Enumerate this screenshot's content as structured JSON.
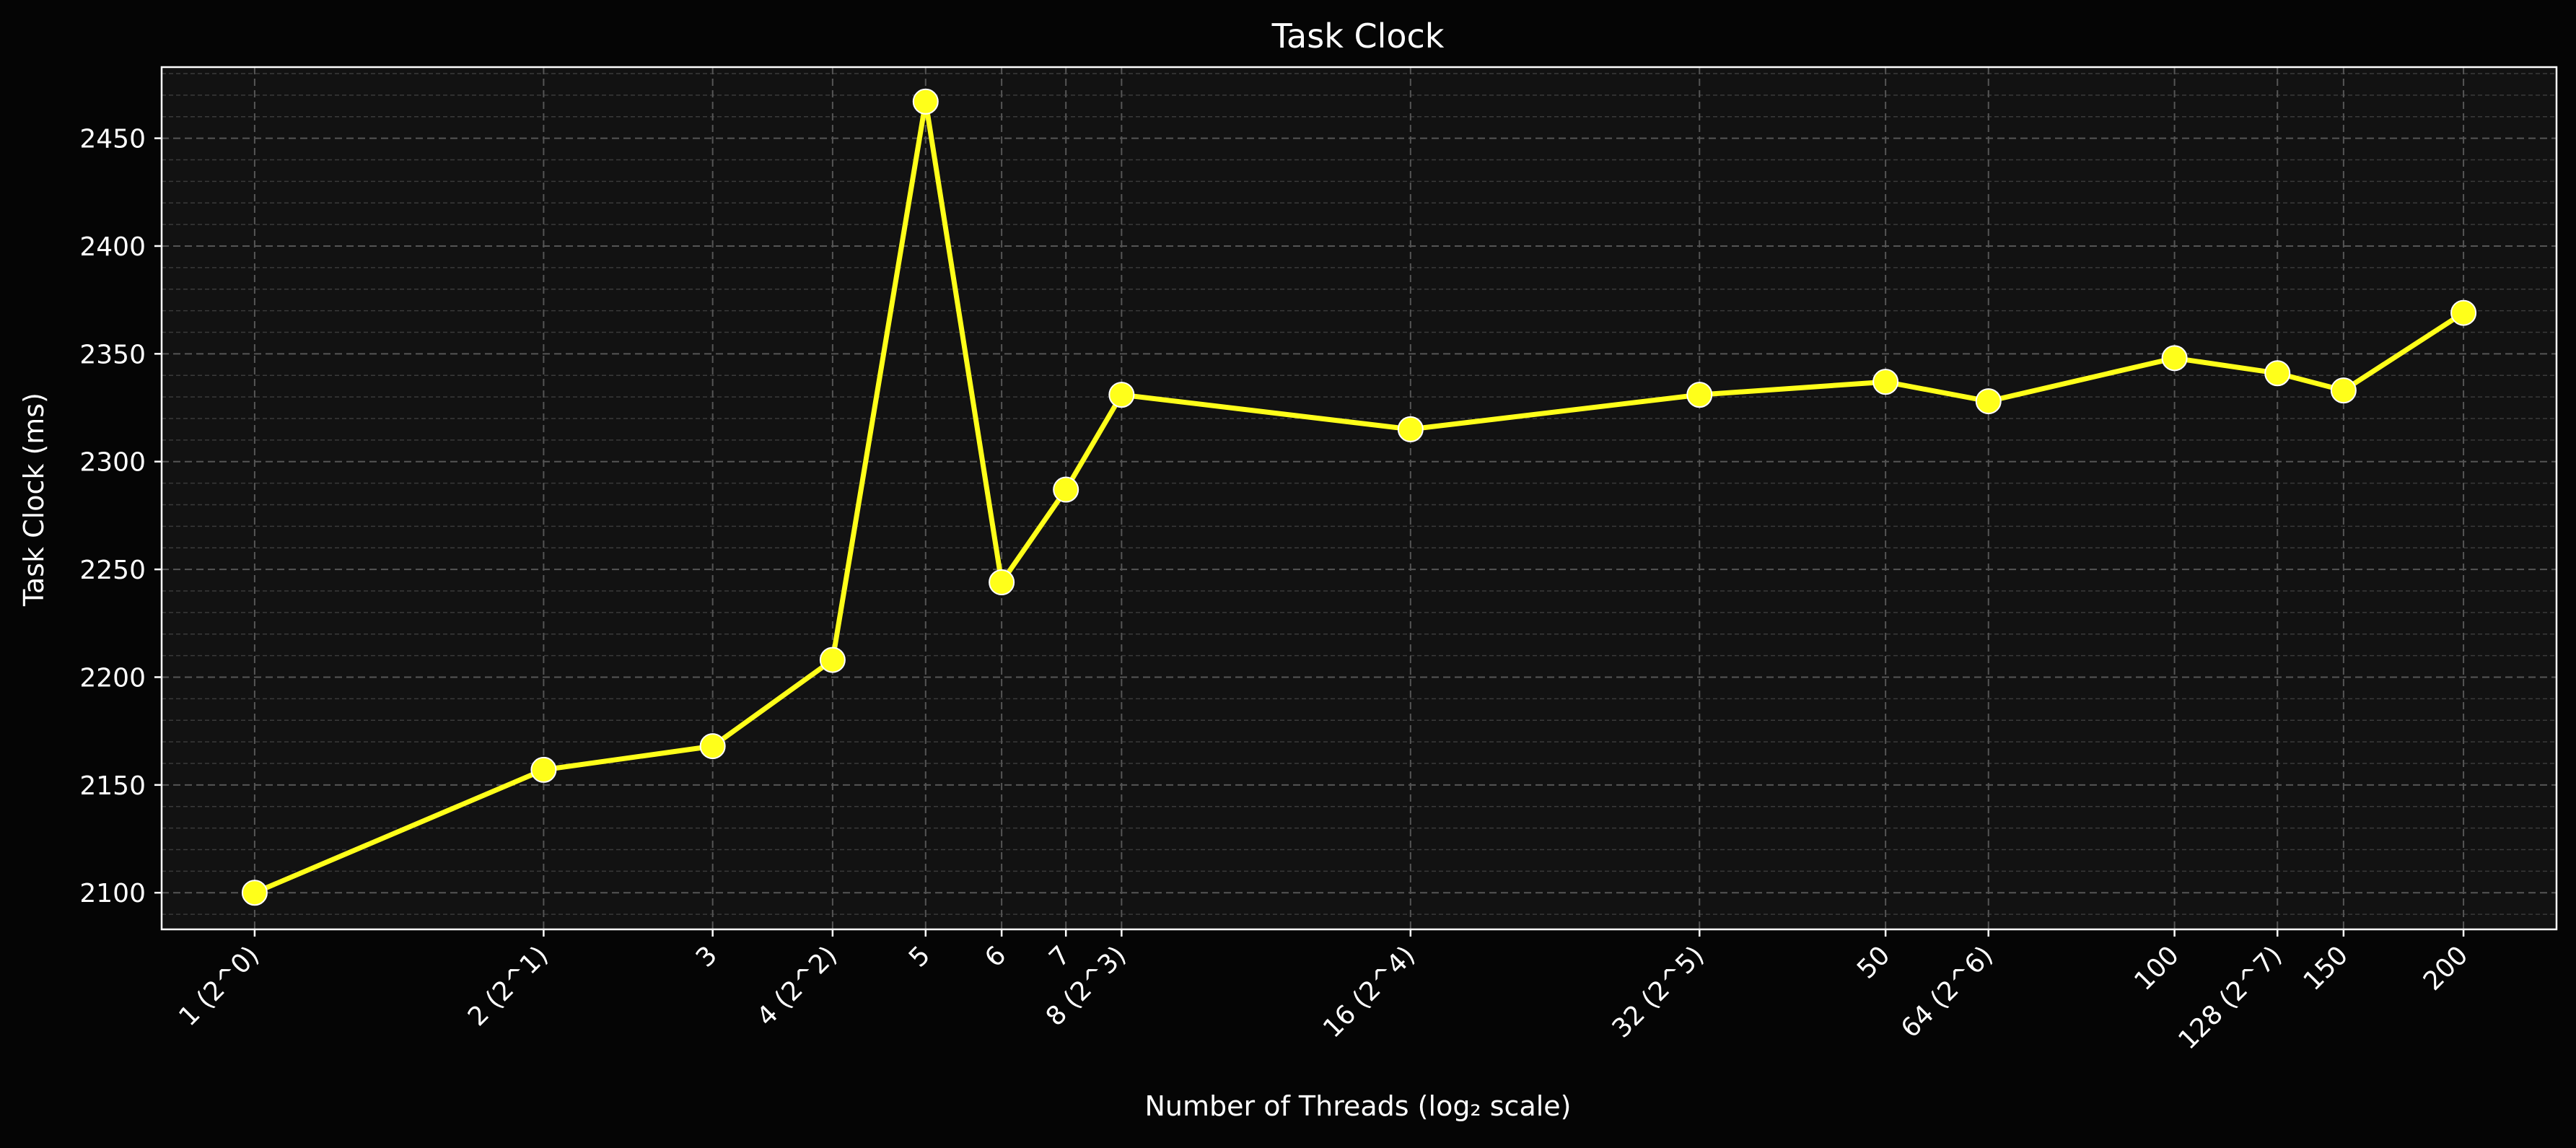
{
  "chart_data": {
    "type": "line",
    "title": "Task Clock",
    "xlabel": "Number of Threads (log₂ scale)",
    "ylabel": "Task Clock (ms)",
    "x_scale": "log2",
    "x": [
      1,
      2,
      3,
      4,
      5,
      6,
      7,
      8,
      16,
      32,
      50,
      64,
      100,
      128,
      150,
      200
    ],
    "x_tick_labels": [
      "1 (2^0)",
      "2 (2^1)",
      "3",
      "4 (2^2)",
      "5",
      "6",
      "7",
      "8 (2^3)",
      "16 (2^4)",
      "32 (2^5)",
      "50",
      "64 (2^6)",
      "100",
      "128 (2^7)",
      "150",
      "200"
    ],
    "series": [
      {
        "values": [
          2100,
          2157,
          2168,
          2208,
          2467,
          2244,
          2287,
          2331,
          2315,
          2331,
          2337,
          2328,
          2348,
          2341,
          2333,
          2369
        ],
        "color": "#ffff1a"
      }
    ],
    "y_ticks": [
      2100,
      2150,
      2200,
      2250,
      2300,
      2350,
      2400,
      2450
    ],
    "ylim": [
      2083,
      2483
    ],
    "grid": true,
    "minor_grid": true,
    "background": "#050505",
    "plot_background": "#121212"
  }
}
